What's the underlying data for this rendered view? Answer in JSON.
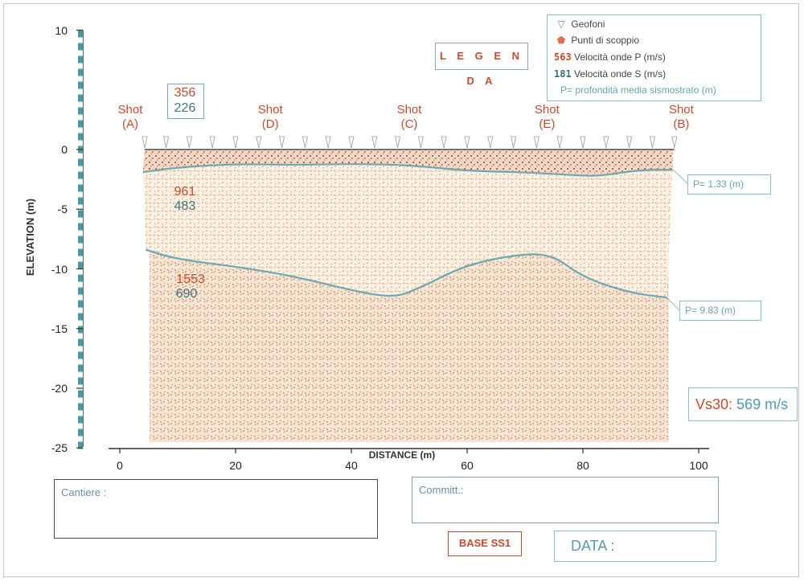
{
  "legend": {
    "title": "L E G E N D A",
    "geofoni": "Geofoni",
    "punti": "Punti di scoppio",
    "p_sample": "563",
    "p_label": "Velocità onde P (m/s)",
    "s_sample": "181",
    "s_label": "Velocità onde S (m/s)",
    "depth_label": "P= profondità media sismostrato (m)"
  },
  "colors": {
    "red": "#c94a2e",
    "teal": "#3f7482",
    "light_teal": "#8fbfc6",
    "soil_top": "#c0502c",
    "soil_mid": "#d8a070",
    "soil_low": "#c8845a"
  },
  "chart_data": {
    "type": "diagram",
    "xlabel": "DISTANCE (m)",
    "ylabel": "ELEVATION (m)",
    "xlim": [
      0,
      100
    ],
    "ylim": [
      -25,
      10
    ],
    "x_ticks": [
      0,
      20,
      40,
      60,
      80,
      100
    ],
    "y_ticks": [
      10,
      0,
      -5,
      -10,
      -15,
      -20,
      -25
    ],
    "geophones_x": [
      4.3,
      8.0,
      12.0,
      16.0,
      20.0,
      24.0,
      28.0,
      32.0,
      36.0,
      40.0,
      44.0,
      48.0,
      52.0,
      56.0,
      60.0,
      64.0,
      68.0,
      72.0,
      76.0,
      80.0,
      84.0,
      88.0,
      92.0,
      95.8
    ],
    "shots": [
      {
        "label": "Shot",
        "id": "(A)",
        "x": 1.8
      },
      {
        "label": "Shot",
        "id": "(D)",
        "x": 26.0
      },
      {
        "label": "Shot",
        "id": "(C)",
        "x": 50.0
      },
      {
        "label": "Shot",
        "id": "(E)",
        "x": 73.8
      },
      {
        "label": "Shot",
        "id": "(B)",
        "x": 97.0
      }
    ],
    "interface1": {
      "x": [
        4,
        10,
        20,
        30,
        40,
        50,
        60,
        70,
        80,
        83,
        90,
        95.5
      ],
      "y": [
        -1.9,
        -1.5,
        -1.2,
        -1.3,
        -1.2,
        -1.3,
        -1.8,
        -1.9,
        -2.2,
        -2.2,
        -1.7,
        -1.7
      ]
    },
    "interface2": {
      "x": [
        4.5,
        10,
        20,
        30,
        40,
        47,
        51,
        60,
        70,
        75,
        80,
        88,
        94.5
      ],
      "y": [
        -8.4,
        -9.2,
        -9.8,
        -10.6,
        -11.8,
        -12.4,
        -11.8,
        -9.6,
        -8.7,
        -8.9,
        -10.7,
        -12.0,
        -12.4
      ]
    },
    "layers": [
      {
        "p": "356",
        "s": "226"
      },
      {
        "p": "961",
        "s": "483"
      },
      {
        "p": "1553",
        "s": "690"
      }
    ],
    "depth_labels": [
      "P= 1.33 (m)",
      "P= 9.83 (m)"
    ]
  },
  "vs30": {
    "label": "Vs30:",
    "value": "569 m/s"
  },
  "fields": {
    "cantiere": "Cantiere :",
    "committ": "Committ.:",
    "base": "BASE SS1",
    "data": "DATA :"
  }
}
